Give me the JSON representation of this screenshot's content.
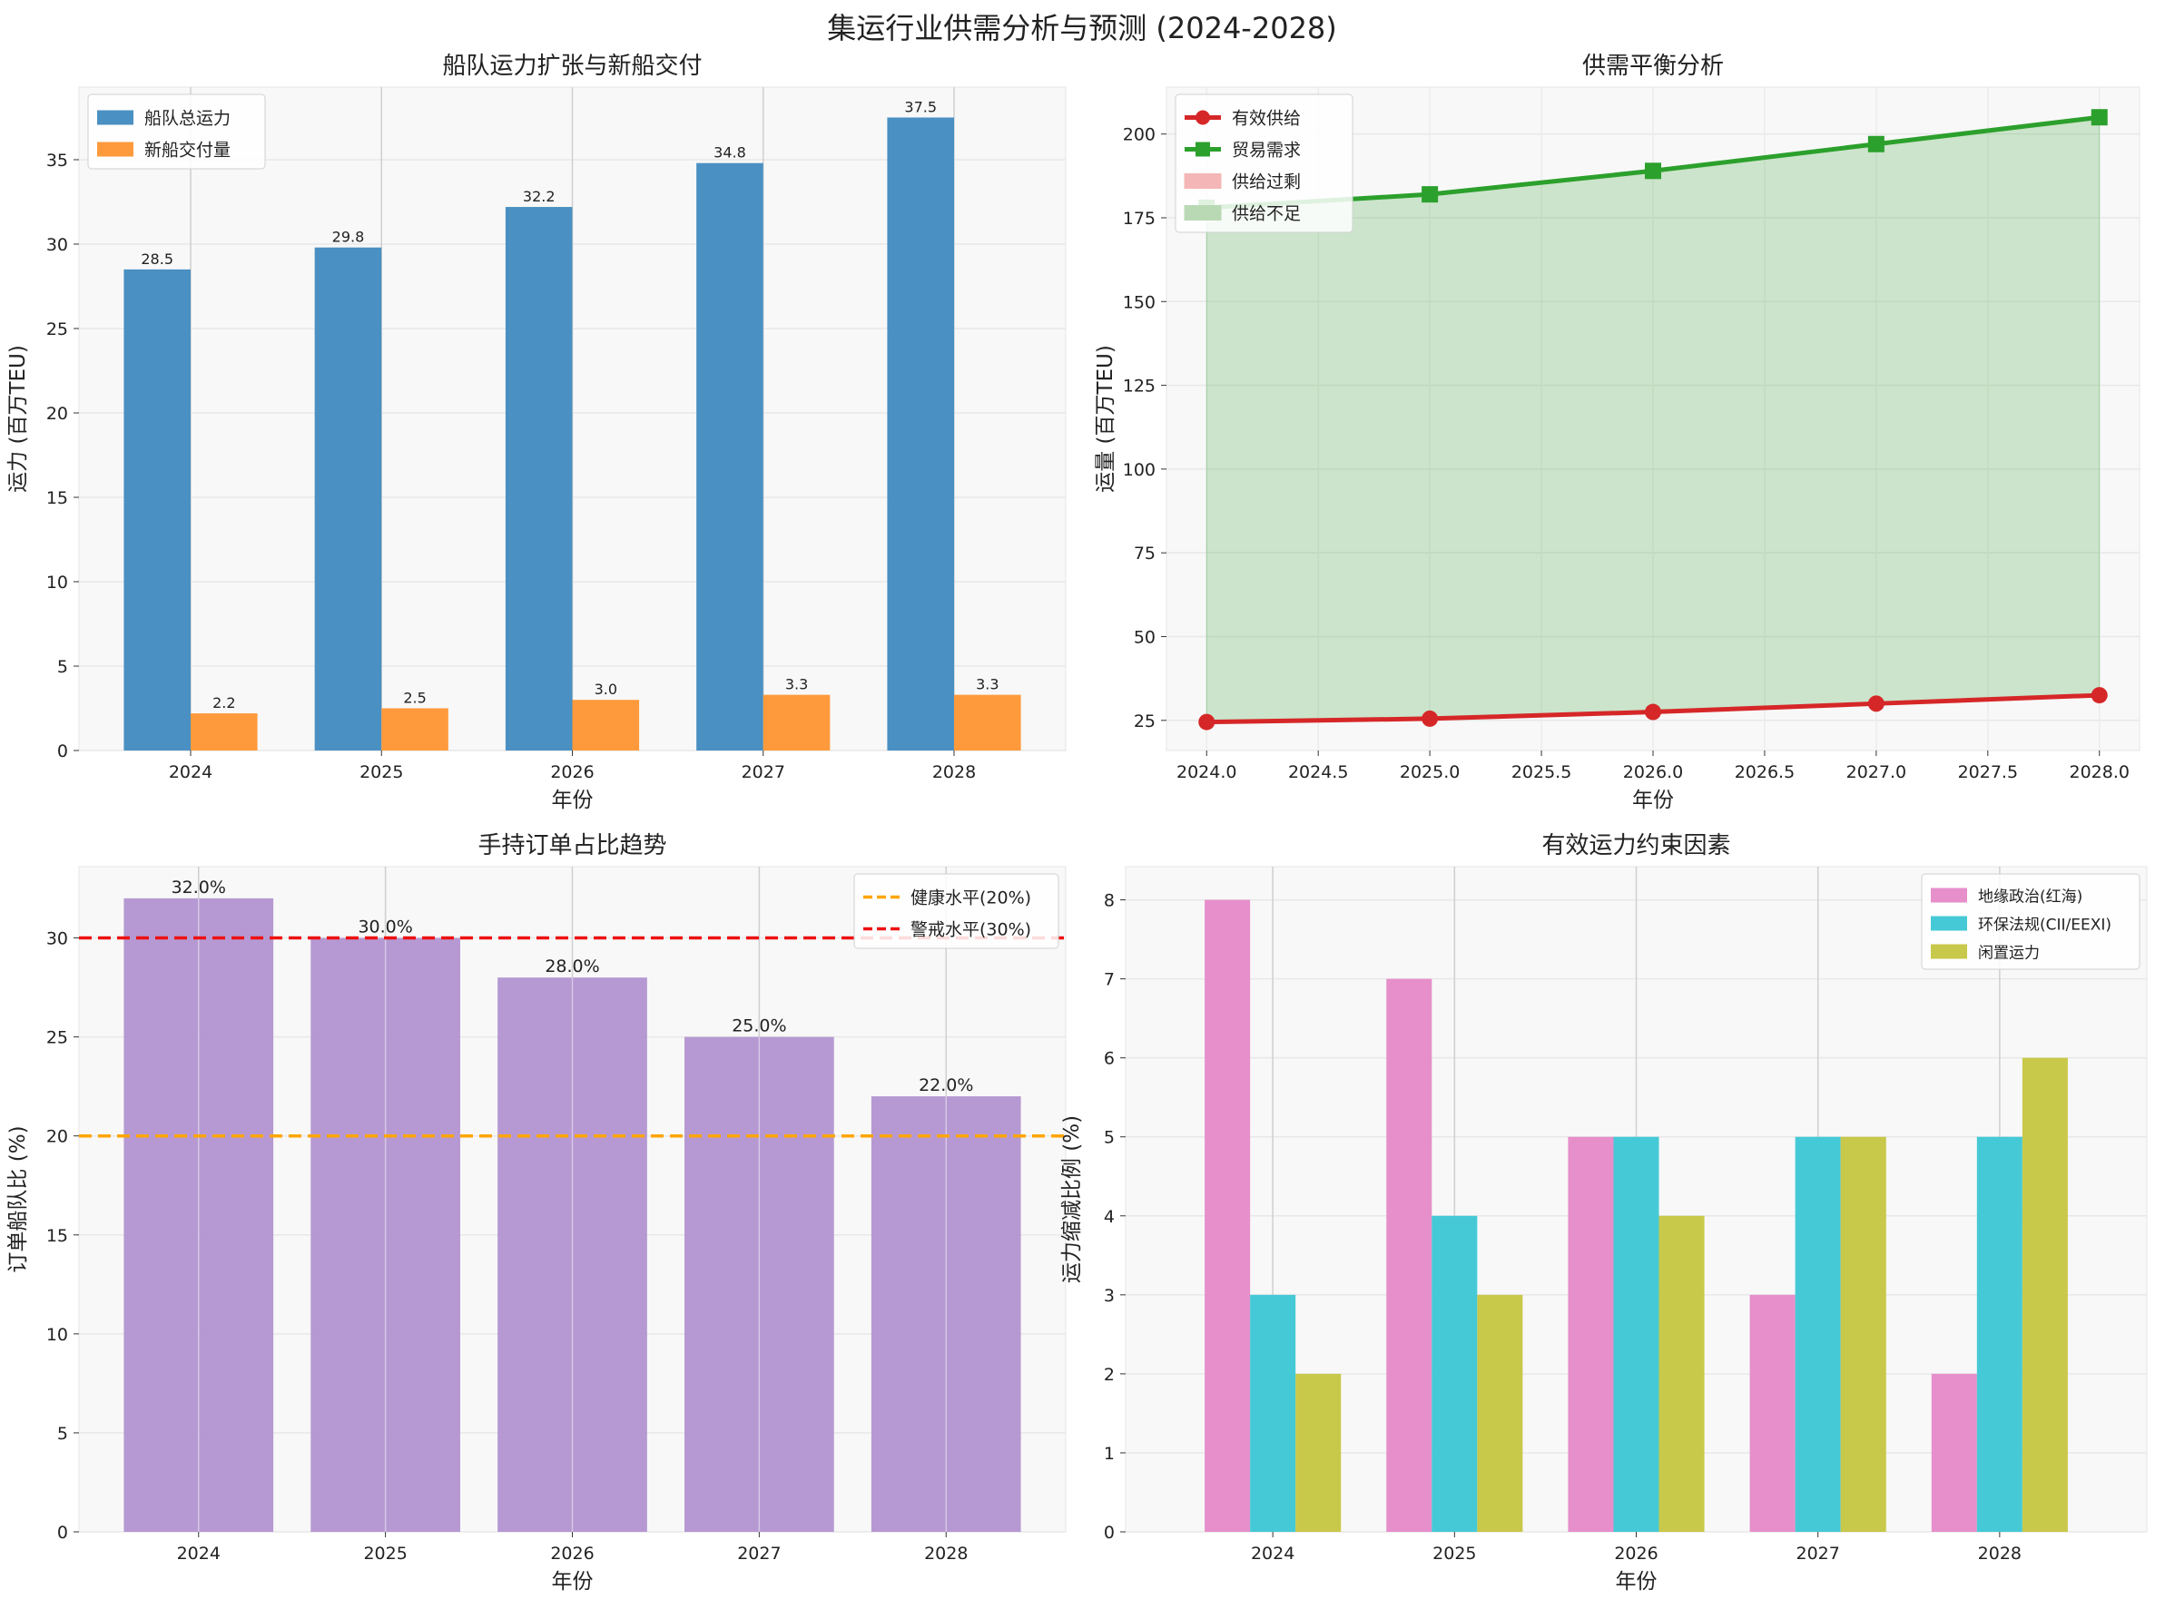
{
  "suptitle": "集运行业供需分析与预测 (2024-2028)",
  "chart_data": [
    {
      "type": "bar",
      "title": "船队运力扩张与新船交付",
      "xlabel": "年份",
      "ylabel": "运力 (百万TEU)",
      "categories": [
        "2024",
        "2025",
        "2026",
        "2027",
        "2028"
      ],
      "series": [
        {
          "name": "船队总运力",
          "values": [
            28.5,
            29.8,
            32.2,
            34.8,
            37.5
          ],
          "color": "#4a90c2"
        },
        {
          "name": "新船交付量",
          "values": [
            2.2,
            2.5,
            3.0,
            3.3,
            3.3
          ],
          "color": "#ff9a3c"
        }
      ],
      "data_labels": [
        [
          "28.5",
          "29.8",
          "32.2",
          "34.8",
          "37.5"
        ],
        [
          "2.2",
          "2.5",
          "3.0",
          "3.3",
          "3.3"
        ]
      ],
      "yticks": [
        0,
        5,
        10,
        15,
        20,
        25,
        30,
        35
      ],
      "ylim": [
        0,
        39.3
      ],
      "grid": true,
      "legend": "top-left"
    },
    {
      "type": "line",
      "title": "供需平衡分析",
      "xlabel": "年份",
      "ylabel": "运量 (百万TEU)",
      "x": [
        2024,
        2025,
        2026,
        2027,
        2028
      ],
      "xticks": [
        "2024.0",
        "2024.5",
        "2025.0",
        "2025.5",
        "2026.0",
        "2026.5",
        "2027.0",
        "2027.5",
        "2028.0"
      ],
      "yticks": [
        25,
        50,
        75,
        100,
        125,
        150,
        175,
        200
      ],
      "xlim": [
        2023.82,
        2028.18
      ],
      "ylim": [
        16,
        214
      ],
      "series": [
        {
          "name": "有效供给",
          "values": [
            24.5,
            25.5,
            27.5,
            30,
            32.5
          ],
          "color": "#d62728",
          "marker": "circle"
        },
        {
          "name": "贸易需求",
          "values": [
            178,
            182,
            189,
            197,
            205
          ],
          "color": "#2ca02c",
          "marker": "square"
        }
      ],
      "fill_legend": [
        {
          "name": "供给过剩",
          "color": "#f4b6b6"
        },
        {
          "name": "供给不足",
          "color": "#b9d9b5"
        }
      ],
      "grid": true,
      "legend": "top-left"
    },
    {
      "type": "bar",
      "title": "手持订单占比趋势",
      "xlabel": "年份",
      "ylabel": "订单船队比 (%)",
      "categories": [
        "2024",
        "2025",
        "2026",
        "2027",
        "2028"
      ],
      "values": [
        32,
        30,
        28,
        25,
        22
      ],
      "data_labels": [
        "32.0%",
        "30.0%",
        "28.0%",
        "25.0%",
        "22.0%"
      ],
      "color": "#b294d0",
      "yticks": [
        0,
        5,
        10,
        15,
        20,
        25,
        30
      ],
      "ylim": [
        0,
        33.6
      ],
      "reference_lines": [
        {
          "name": "健康水平(20%)",
          "value": 20,
          "color": "#ffa500"
        },
        {
          "name": "警戒水平(30%)",
          "value": 30,
          "color": "#ee1111"
        }
      ],
      "grid": true,
      "legend": "top-right"
    },
    {
      "type": "bar",
      "title": "有效运力约束因素",
      "xlabel": "年份",
      "ylabel": "运力缩减比例 (%)",
      "categories": [
        "2024",
        "2025",
        "2026",
        "2027",
        "2028"
      ],
      "series": [
        {
          "name": "地缘政治(红海)",
          "values": [
            8,
            7,
            5,
            3,
            2
          ],
          "color": "#e68fca"
        },
        {
          "name": "环保法规(CII/EEXI)",
          "values": [
            3,
            4,
            5,
            5,
            5
          ],
          "color": "#45c9d6"
        },
        {
          "name": "闲置运力",
          "values": [
            2,
            3,
            4,
            5,
            6
          ],
          "color": "#c8c84a"
        }
      ],
      "yticks": [
        0,
        1,
        2,
        3,
        4,
        5,
        6,
        7,
        8
      ],
      "ylim": [
        0,
        8.42
      ],
      "grid": true,
      "legend": "top-right"
    }
  ]
}
